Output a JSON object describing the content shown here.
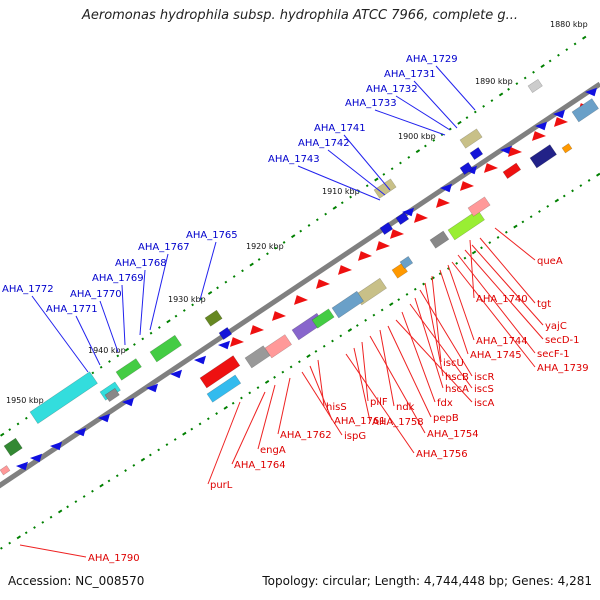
{
  "title": "Aeromonas hydrophila subsp. hydrophila ATCC 7966, complete g...",
  "footer": {
    "accession": "Accession: NC_008570",
    "topology": "Topology: circular; Length: 4,744,448 bp; Genes: 4,281"
  },
  "colors": {
    "backbone": "#808080",
    "top_label": "#0000cc",
    "bottom_label": "#dd0000",
    "tick": "#008000"
  },
  "kbp_ticks": [
    "1880 kbp",
    "1890 kbp",
    "1900 kbp",
    "1910 kbp",
    "1920 kbp",
    "1930 kbp",
    "1940 kbp",
    "1950 kbp"
  ],
  "top_labels": [
    "AHA_1729",
    "AHA_1731",
    "AHA_1732",
    "AHA_1733",
    "AHA_1741",
    "AHA_1742",
    "AHA_1743",
    "AHA_1765",
    "AHA_1767",
    "AHA_1768",
    "AHA_1769",
    "AHA_1772",
    "AHA_1770",
    "AHA_1771"
  ],
  "bottom_labels": [
    "queA",
    "tgt",
    "AHA_1740",
    "yajC",
    "secD-1",
    "secF-1",
    "AHA_1739",
    "AHA_1744",
    "AHA_1745",
    "iscU",
    "hscB",
    "iscR",
    "hscA",
    "iscS",
    "fdx",
    "iscA",
    "pepB",
    "ndk",
    "AHA_1754",
    "pilF",
    "AHA_1758",
    "AHA_1756",
    "hisS",
    "AHA_1761",
    "ispG",
    "AHA_1762",
    "engA",
    "AHA_1764",
    "purL",
    "AHA_1790"
  ]
}
